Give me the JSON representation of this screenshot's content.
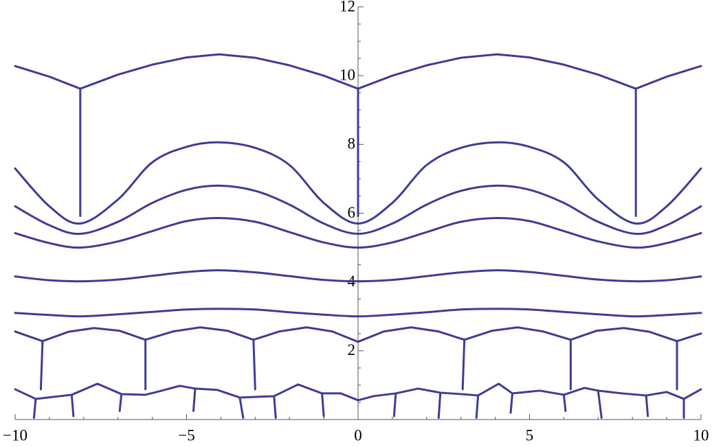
{
  "chart_data": {
    "type": "line",
    "color": "#3d3c97",
    "xlim": [
      -10,
      10
    ],
    "ylim": [
      0,
      12
    ],
    "xticks": [
      {
        "value": -10,
        "label": "−10"
      },
      {
        "value": -5,
        "label": "−5"
      },
      0,
      5,
      10
    ],
    "yticks": [
      2,
      4,
      6,
      8,
      10,
      12
    ],
    "xminorticks": [
      -9,
      -8,
      -7,
      -6,
      -4,
      -3,
      -2,
      -1,
      1,
      2,
      3,
      4,
      6,
      7,
      8,
      9
    ],
    "yminorticks": [
      0.5,
      1,
      1.5,
      2.5,
      3,
      3.5,
      4.5,
      5,
      5.5,
      6.5,
      7,
      7.5,
      8.5,
      9,
      9.5,
      10.5,
      11,
      11.5
    ],
    "series": [
      {
        "x": [
          -10,
          -9,
          -8.1,
          -7,
          -6,
          -5,
          -4.05,
          -3,
          -2,
          -1,
          0,
          1,
          2,
          3,
          4.05,
          5,
          6,
          7,
          8.1,
          9,
          10
        ],
        "values": [
          10.28,
          9.97,
          9.62,
          10.03,
          10.32,
          10.53,
          10.62,
          10.52,
          10.3,
          10.0,
          9.62,
          10.0,
          10.3,
          10.52,
          10.62,
          10.53,
          10.32,
          10.03,
          9.62,
          9.97,
          10.28
        ]
      },
      {
        "x": [
          -10,
          -9,
          -8.1,
          -7,
          -6,
          -5,
          -4.05,
          -3,
          -2,
          -1,
          0,
          1,
          2,
          3,
          4.05,
          5,
          6,
          7,
          8.1,
          9,
          10
        ],
        "values": [
          7.3,
          6.2,
          5.7,
          6.4,
          7.48,
          7.93,
          8.06,
          7.9,
          7.4,
          6.3,
          5.7,
          6.3,
          7.4,
          7.9,
          8.06,
          7.93,
          7.48,
          6.4,
          5.7,
          6.2,
          7.3
        ],
        "smooth": true
      },
      {
        "x": [
          -10,
          -9,
          -8.1,
          -7,
          -6,
          -5,
          -4.05,
          -3,
          -2,
          -1,
          0,
          1,
          2,
          3,
          4.05,
          5,
          6,
          7,
          8.1,
          9,
          10
        ],
        "values": [
          6.2,
          5.65,
          5.4,
          5.75,
          6.3,
          6.68,
          6.8,
          6.65,
          6.25,
          5.7,
          5.4,
          5.7,
          6.25,
          6.65,
          6.8,
          6.68,
          6.3,
          5.75,
          5.4,
          5.65,
          6.2
        ],
        "smooth": true
      },
      {
        "x": [
          -10,
          -9,
          -8.1,
          -7,
          -6,
          -5,
          -4.05,
          -3,
          -2,
          -1,
          0,
          1,
          2,
          3,
          4.05,
          5,
          6,
          7,
          8.1,
          9,
          10
        ],
        "values": [
          5.42,
          5.13,
          5.0,
          5.18,
          5.48,
          5.77,
          5.86,
          5.75,
          5.45,
          5.15,
          5.0,
          5.15,
          5.45,
          5.75,
          5.86,
          5.77,
          5.48,
          5.18,
          5.0,
          5.13,
          5.42
        ],
        "smooth": true
      },
      {
        "x": [
          -10,
          -9,
          -8.1,
          -7,
          -6,
          -5,
          -4.05,
          -3,
          -2,
          -1,
          0,
          1,
          2,
          3,
          4.05,
          5,
          6,
          7,
          8.1,
          9,
          10
        ],
        "values": [
          4.16,
          4.05,
          4.02,
          4.07,
          4.18,
          4.29,
          4.34,
          4.28,
          4.17,
          4.06,
          4.02,
          4.06,
          4.17,
          4.28,
          4.34,
          4.29,
          4.18,
          4.07,
          4.02,
          4.05,
          4.16
        ],
        "smooth": true
      },
      {
        "x": [
          -10,
          -9,
          -8.1,
          -7,
          -6,
          -5,
          -4.05,
          -3,
          -2,
          -1,
          0,
          1,
          2,
          3,
          4.05,
          5,
          6,
          7,
          8.1,
          9,
          10
        ],
        "values": [
          3.1,
          3.04,
          3.0,
          3.06,
          3.13,
          3.2,
          3.22,
          3.2,
          3.12,
          3.05,
          3.0,
          3.05,
          3.12,
          3.2,
          3.22,
          3.2,
          3.13,
          3.06,
          3.0,
          3.04,
          3.1
        ],
        "smooth": true
      },
      {
        "x": [
          -10,
          -9.2,
          -8.45,
          -7.7,
          -6.95,
          -6.2,
          -5.4,
          -4.6,
          -3.8,
          -3.05,
          -2.3,
          -1.5,
          -0.75,
          0,
          0.75,
          1.55,
          2.35,
          3.1,
          3.9,
          4.65,
          5.4,
          6.2,
          6.95,
          7.75,
          8.5,
          9.3,
          10
        ],
        "values": [
          2.56,
          2.28,
          2.55,
          2.66,
          2.58,
          2.32,
          2.56,
          2.68,
          2.58,
          2.32,
          2.56,
          2.68,
          2.56,
          2.26,
          2.56,
          2.68,
          2.56,
          2.32,
          2.58,
          2.68,
          2.56,
          2.32,
          2.58,
          2.66,
          2.55,
          2.28,
          2.5
        ]
      },
      {
        "x": [
          -10,
          -9.4,
          -8.35,
          -7.6,
          -6.9,
          -6.2,
          -5.8,
          -5.2,
          -4.75,
          -4.1,
          -3.45,
          -2.45,
          -1.75,
          -1.05,
          -0.5,
          0,
          0.45,
          1.1,
          1.75,
          2.4,
          3.0,
          3.5,
          4.1,
          4.5,
          5.3,
          6.0,
          6.6,
          7.0,
          7.7,
          8.4,
          9.0,
          9.5,
          10
        ],
        "values": [
          0.88,
          0.6,
          0.72,
          1.04,
          0.74,
          0.72,
          0.82,
          0.98,
          0.9,
          0.86,
          0.64,
          0.68,
          1.02,
          0.76,
          0.76,
          0.56,
          0.68,
          0.76,
          0.9,
          0.78,
          0.74,
          0.7,
          1.04,
          0.76,
          0.84,
          0.72,
          0.92,
          0.84,
          0.76,
          0.7,
          0.8,
          0.6,
          0.88
        ]
      },
      {
        "x": [
          -8.1,
          -8.1,
          null,
          0,
          0,
          null,
          8.1,
          8.1,
          null,
          -9.2,
          -9.25,
          null,
          -6.2,
          -6.2,
          null,
          -3.05,
          -3.0,
          null,
          3.1,
          3.05,
          null,
          6.2,
          6.2,
          null,
          9.3,
          9.3,
          null,
          -9.4,
          -9.45,
          null,
          -8.35,
          -8.3,
          null,
          -6.9,
          -6.95,
          null,
          -4.75,
          -4.8,
          null,
          -3.45,
          -3.35,
          null,
          -2.45,
          -2.4,
          null,
          -1.05,
          -1.0,
          null,
          1.1,
          1.05,
          null,
          2.4,
          2.35,
          null,
          3.5,
          3.45,
          null,
          4.5,
          4.45,
          null,
          6.0,
          6.05,
          null,
          7.0,
          7.1,
          null,
          8.4,
          8.45,
          null,
          9.5,
          9.5
        ],
        "values": [
          9.62,
          5.92,
          null,
          9.62,
          5.92,
          null,
          9.62,
          5.92,
          null,
          2.28,
          0.88,
          null,
          2.32,
          0.88,
          null,
          2.32,
          0.88,
          null,
          2.32,
          0.88,
          null,
          2.32,
          0.88,
          null,
          2.28,
          0.88,
          null,
          0.6,
          0.05,
          null,
          0.72,
          0.1,
          null,
          0.74,
          0.25,
          null,
          0.9,
          0.25,
          null,
          0.64,
          0.05,
          null,
          0.68,
          0.05,
          null,
          0.76,
          0.1,
          null,
          0.76,
          0.1,
          null,
          0.78,
          0.05,
          null,
          0.7,
          0.05,
          null,
          0.76,
          0.2,
          null,
          0.72,
          0.25,
          null,
          0.84,
          0.05,
          null,
          0.7,
          0.1,
          null,
          0.6,
          0.05
        ]
      }
    ]
  }
}
